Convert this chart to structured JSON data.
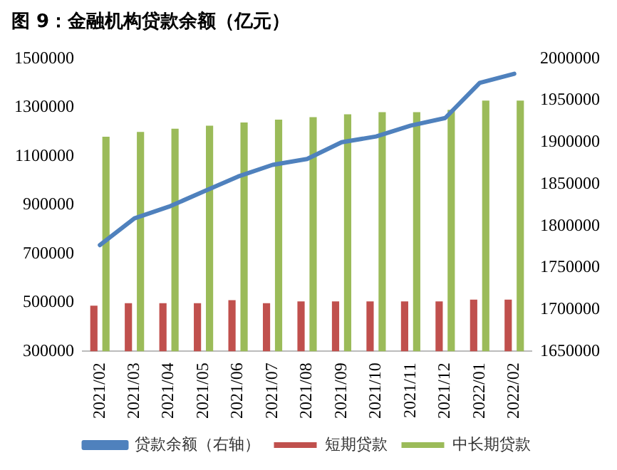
{
  "chart_data": {
    "type": "bar",
    "title": "图 9：金融机构贷款余额（亿元）",
    "categories": [
      "2021/02",
      "2021/03",
      "2021/04",
      "2021/05",
      "2021/06",
      "2021/07",
      "2021/08",
      "2021/09",
      "2021/10",
      "2021/11",
      "2021/12",
      "2022/01",
      "2022/02"
    ],
    "series": [
      {
        "name": "短期贷款",
        "color": "#c0504d",
        "values": [
          487000,
          497000,
          497000,
          497000,
          510000,
          497000,
          505000,
          505000,
          505000,
          505000,
          505000,
          512000,
          512000
        ]
      },
      {
        "name": "中长期贷款",
        "color": "#9bbb59",
        "values": [
          1180000,
          1200000,
          1213000,
          1225000,
          1238000,
          1250000,
          1260000,
          1272000,
          1281000,
          1281000,
          1290000,
          1328000,
          1328000
        ]
      },
      {
        "name": "贷款余额（右轴）",
        "type": "line",
        "axis": "y2",
        "color": "#4f81bd",
        "values": [
          1777000,
          1809000,
          1823000,
          1841000,
          1859000,
          1873000,
          1880000,
          1900000,
          1907000,
          1920000,
          1929000,
          1971000,
          1982000
        ]
      }
    ],
    "ylim": [
      300000,
      1500000
    ],
    "yticks": [
      300000,
      500000,
      700000,
      900000,
      1100000,
      1300000,
      1500000
    ],
    "y2lim": [
      1650000,
      2000000
    ],
    "y2ticks": [
      1650000,
      1700000,
      1750000,
      1800000,
      1850000,
      1900000,
      1950000,
      2000000
    ],
    "grid": false,
    "legend": "bottom",
    "marker": "none"
  }
}
